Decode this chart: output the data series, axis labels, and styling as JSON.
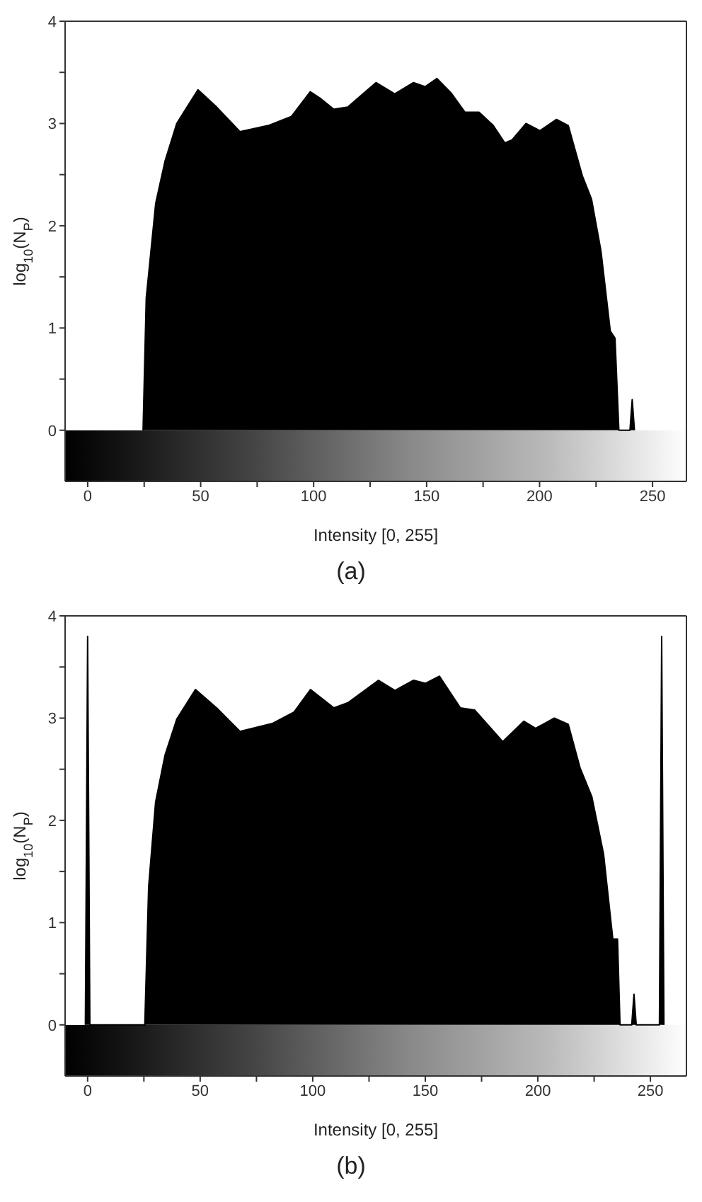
{
  "chart_data": [
    {
      "type": "area",
      "title": "(a)",
      "xlabel": "Intensity [0, 255]",
      "ylabel": "log$_{10}$(N$_{P}$)",
      "xlim": [
        -10,
        265
      ],
      "ylim": [
        -0.5,
        4
      ],
      "xticks": [
        0,
        {
          "value": 25,
          "label": null
        },
        50,
        {
          "value": 75,
          "label": null
        },
        100,
        {
          "value": 125,
          "label": null
        },
        150,
        {
          "value": 175,
          "label": null
        },
        200,
        {
          "value": 225,
          "label": null
        },
        250
      ],
      "yticks": [
        0,
        {
          "value": 0.5,
          "label": null
        },
        1,
        {
          "value": 1.5,
          "label": null
        },
        2,
        {
          "value": 2.5,
          "label": null
        },
        3,
        {
          "value": 3.5,
          "label": null
        },
        4
      ],
      "series": [
        {
          "color": "#000000",
          "x": [
            24.5,
            25.9,
            30.1,
            34.2,
            39.4,
            48.8,
            57.1,
            67.4,
            79.9,
            90.2,
            98.5,
            102.7,
            108.9,
            115.1,
            127.6,
            135.9,
            144.2,
            149.4,
            154.6,
            160.8,
            167,
            173.2,
            179.5,
            184.6,
            187.8,
            194,
            200.2,
            207.5,
            212.7,
            218.9,
            223,
            227.2,
            231.3,
            233.4,
            235.1,
            240,
            241,
            242
          ],
          "values": [
            0,
            1.29,
            2.22,
            2.63,
            3,
            3.33,
            3.16,
            2.92,
            2.98,
            3.07,
            3.31,
            3.25,
            3.14,
            3.16,
            3.4,
            3.29,
            3.4,
            3.36,
            3.44,
            3.3,
            3.11,
            3.11,
            2.98,
            2.81,
            2.84,
            3,
            2.93,
            3.04,
            2.98,
            2.49,
            2.26,
            1.75,
            0.97,
            0.9,
            0,
            0,
            0.3,
            0
          ]
        }
      ]
    },
    {
      "type": "area",
      "title": "(b)",
      "xlabel": "Intensity [0, 255]",
      "ylabel": "log$_{10}$(N$_{P}$)",
      "xlim": [
        -10,
        266
      ],
      "ylim": [
        -0.5,
        4
      ],
      "xticks": [
        0,
        {
          "value": 25,
          "label": null
        },
        50,
        {
          "value": 75,
          "label": null
        },
        100,
        {
          "value": 125,
          "label": null
        },
        150,
        {
          "value": 175,
          "label": null
        },
        200,
        {
          "value": 225,
          "label": null
        },
        250
      ],
      "yticks": [
        0,
        {
          "value": 0.5,
          "label": null
        },
        1,
        {
          "value": 1.5,
          "label": null
        },
        2,
        {
          "value": 2.5,
          "label": null
        },
        3,
        {
          "value": 3.5,
          "label": null
        },
        4
      ],
      "series": [
        {
          "color": "#000000",
          "x": [
            -1,
            0,
            1,
            25.4,
            27.1,
            30.2,
            34.4,
            39.6,
            47.9,
            57.3,
            67.7,
            82.3,
            91.7,
            99,
            109.4,
            115.6,
            129.2,
            136.5,
            144.8,
            150,
            156.3,
            165.6,
            171.9,
            184.4,
            193.8,
            199,
            207.3,
            213.5,
            218.8,
            224,
            229.2,
            233.3,
            235.4,
            236.5,
            241.7,
            242.7,
            243.7,
            254,
            255,
            256
          ],
          "values": [
            0,
            3.8,
            0,
            0,
            1.35,
            2.18,
            2.64,
            2.99,
            3.28,
            3.1,
            2.87,
            2.95,
            3.06,
            3.28,
            3.1,
            3.15,
            3.37,
            3.27,
            3.37,
            3.34,
            3.41,
            3.1,
            3.08,
            2.77,
            2.97,
            2.9,
            3,
            2.94,
            2.51,
            2.23,
            1.67,
            0.84,
            0.84,
            0,
            0,
            0.3,
            0,
            0,
            3.8,
            0
          ]
        }
      ]
    }
  ]
}
